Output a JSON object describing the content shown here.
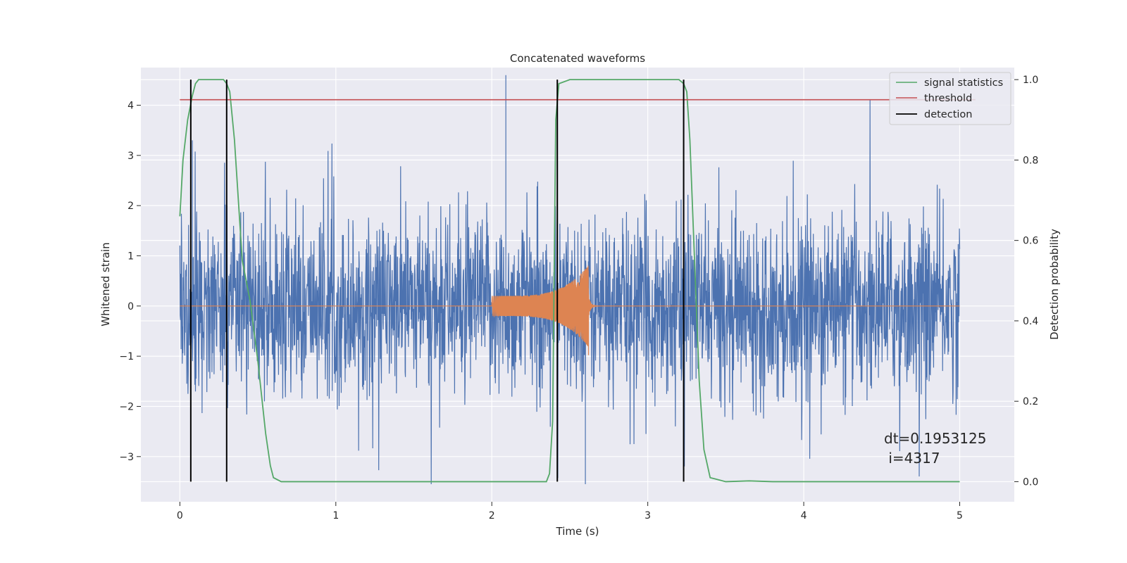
{
  "chart_data": {
    "type": "line",
    "title": "Concatenated waveforms",
    "xlabel": "Time (s)",
    "ylabel_left": "Whitened strain",
    "ylabel_right": "Detection probability",
    "xlim": [
      -0.25,
      5.35
    ],
    "ylim_left": [
      -3.9,
      4.75
    ],
    "ylim_right": [
      -0.05,
      1.03
    ],
    "x_ticks": [
      0,
      1,
      2,
      3,
      4,
      5
    ],
    "y_left_ticks": [
      -3,
      -2,
      -1,
      0,
      1,
      2,
      3,
      4
    ],
    "y_right_ticks": [
      0.0,
      0.2,
      0.4,
      0.6,
      0.8,
      1.0
    ],
    "grid": true,
    "legend_position": "top-right",
    "colors": {
      "plot_bg": "#eaeaf2",
      "noise": "#4c72b0",
      "injection": "#dd8452",
      "signal_statistics": "#55a868",
      "threshold": "#c44e52",
      "detection": "#000000"
    },
    "noise_signal": {
      "name": "whitened strain (noise)",
      "description_shape": "dense noise centred on 0, spikes up to about 4.6 and down to -3.5",
      "x_range": [
        0,
        5
      ],
      "amplitude_typical": 1.3,
      "max": 4.6,
      "min": -3.55
    },
    "injected_signal": {
      "x_start": 2.0,
      "x_peak": 2.62,
      "x_end": 2.7,
      "peak_max": 0.82,
      "peak_min": -0.98,
      "start_amplitude": 0.2
    },
    "series": [
      {
        "name": "signal statistics",
        "axis": "right",
        "x": [
          0,
          0.02,
          0.05,
          0.08,
          0.1,
          0.12,
          0.15,
          0.2,
          0.25,
          0.28,
          0.3,
          0.32,
          0.35,
          0.4,
          0.45,
          0.5,
          0.55,
          0.58,
          0.6,
          0.65,
          1.0,
          2.0,
          2.3,
          2.35,
          2.37,
          2.39,
          2.41,
          2.43,
          2.5,
          3.0,
          3.2,
          3.23,
          3.25,
          3.27,
          3.3,
          3.33,
          3.36,
          3.4,
          3.5,
          3.65,
          3.8,
          4.0,
          5.0
        ],
        "y": [
          0.66,
          0.8,
          0.9,
          0.96,
          0.99,
          1.0,
          1.0,
          1.0,
          1.0,
          1.0,
          0.99,
          0.97,
          0.85,
          0.55,
          0.45,
          0.3,
          0.12,
          0.04,
          0.01,
          0.0,
          0.0,
          0.0,
          0.0,
          0.0,
          0.02,
          0.15,
          0.9,
          0.99,
          1.0,
          1.0,
          1.0,
          0.99,
          0.97,
          0.85,
          0.55,
          0.25,
          0.08,
          0.01,
          0.0,
          0.002,
          0.0,
          0.0,
          0.0
        ]
      },
      {
        "name": "threshold",
        "axis": "right",
        "x": [
          0,
          5.1
        ],
        "y": [
          0.95,
          0.95
        ]
      },
      {
        "name": "detection",
        "axis": "right",
        "type": "vlines",
        "x": [
          0.07,
          0.3,
          2.42,
          3.23
        ],
        "y_range": [
          0,
          1
        ]
      }
    ],
    "annotation": {
      "line1": "dt=0.1953125",
      "line2": " i=4317",
      "x": 4.5,
      "y": 0.1
    }
  }
}
